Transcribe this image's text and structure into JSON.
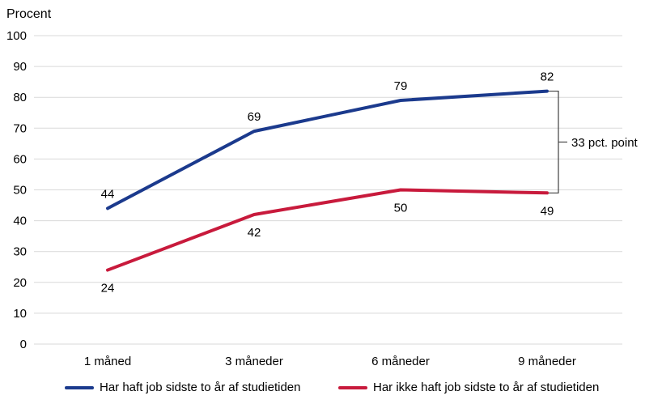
{
  "chart_data": {
    "type": "line",
    "ylabel": "Procent",
    "categories": [
      "1 måned",
      "3 måneder",
      "6 måneder",
      "9 måneder"
    ],
    "series": [
      {
        "name": "Har haft job sidste to år af studietiden",
        "values": [
          44,
          69,
          79,
          82
        ],
        "color": "#1B3A8D",
        "label_position": "above"
      },
      {
        "name": "Har ikke haft job sidste to år af studietiden",
        "values": [
          24,
          42,
          50,
          49
        ],
        "color": "#C81A3C",
        "label_position": "below"
      }
    ],
    "ylim": [
      0,
      100
    ],
    "yticks": [
      0,
      10,
      20,
      30,
      40,
      50,
      60,
      70,
      80,
      90,
      100
    ],
    "grid": true,
    "gridline_color": "#D9D9D9",
    "legend_position": "bottom",
    "annotation": {
      "text": "33 pct. point",
      "from_value": 82,
      "to_value": 49,
      "category_index": 3,
      "bracket_color": "#404040"
    }
  }
}
